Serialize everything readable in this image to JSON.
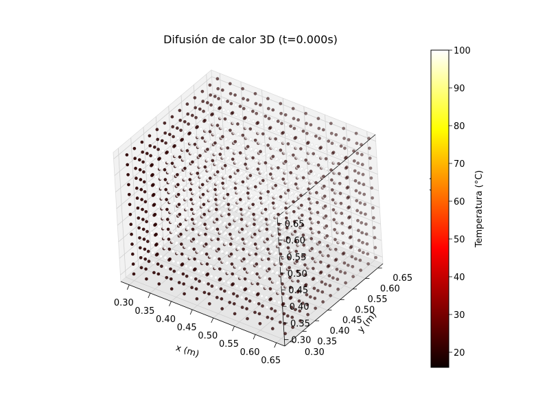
{
  "chart_data": {
    "type": "scatter",
    "projection": "3d",
    "title": "Difusión de calor 3D (t=0.000s)",
    "xlabel": "x (m)",
    "ylabel": "y (m)",
    "zlabel": "z (m)",
    "x_ticks": [
      "0.30",
      "0.35",
      "0.40",
      "0.45",
      "0.50",
      "0.55",
      "0.60",
      "0.65"
    ],
    "y_ticks": [
      "0.30",
      "0.35",
      "0.40",
      "0.45",
      "0.50",
      "0.55",
      "0.60",
      "0.65"
    ],
    "z_ticks": [
      "0.30",
      "0.35",
      "0.40",
      "0.45",
      "0.50",
      "0.55",
      "0.60",
      "0.65"
    ],
    "xlim": [
      0.28,
      0.67
    ],
    "ylim": [
      0.28,
      0.67
    ],
    "zlim": [
      0.28,
      0.67
    ],
    "grid": true,
    "colormap": "hot",
    "points": {
      "grid_min": 0.3,
      "grid_max": 0.66,
      "grid_count": 13,
      "boundary_temperature": 20,
      "interior_temperature": 100
    },
    "colorbar": {
      "label": "Temperatura (°C)",
      "range": [
        16,
        100
      ],
      "ticks": [
        "20",
        "30",
        "40",
        "50",
        "60",
        "70",
        "80",
        "90",
        "100"
      ]
    }
  }
}
